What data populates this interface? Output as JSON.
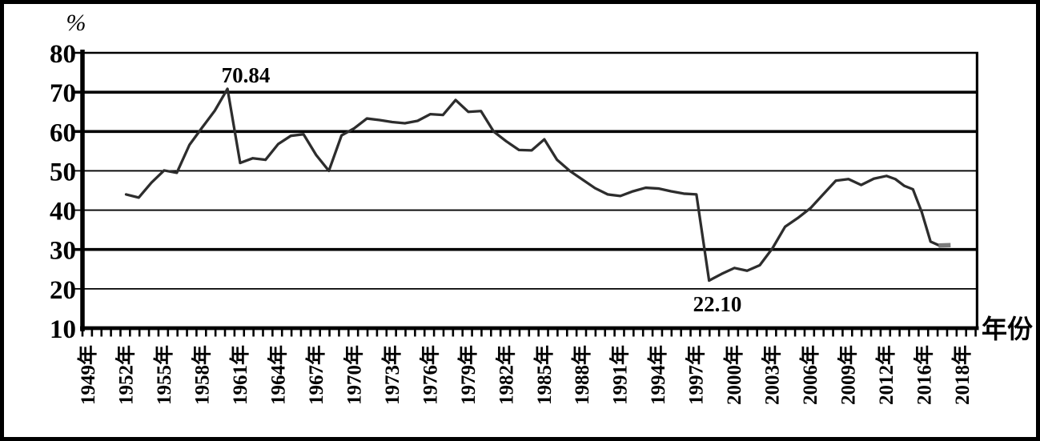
{
  "figure": {
    "background": "#ffffff",
    "frame_color": "#000000"
  },
  "chart_data": {
    "type": "line",
    "title": "",
    "ylabel": "%",
    "xlabel": "年份",
    "ylim": [
      10,
      80
    ],
    "yticks": [
      80,
      70,
      60,
      50,
      40,
      30,
      20,
      10
    ],
    "bold_gridlines": [
      70,
      60,
      30
    ],
    "grid": true,
    "legend_position": "none",
    "xtick_labels": [
      "1949年",
      "1952年",
      "1955年",
      "1958年",
      "1961年",
      "1964年",
      "1967年",
      "1970年",
      "1973年",
      "1976年",
      "1979年",
      "1982年",
      "1985年",
      "1988年",
      "1991年",
      "1994年",
      "1997年",
      "2000年",
      "2003年",
      "2006年",
      "2009年",
      "2012年",
      "2016年",
      "2018年"
    ],
    "series": [
      {
        "name": "",
        "color": "#2d2d2d",
        "end_marker_color": "#7c7c7c",
        "years": [
          1952,
          1953,
          1954,
          1955,
          1956,
          1957,
          1958,
          1959,
          1960,
          1961,
          1962,
          1963,
          1964,
          1965,
          1966,
          1967,
          1968,
          1969,
          1970,
          1971,
          1972,
          1973,
          1974,
          1975,
          1976,
          1977,
          1978,
          1979,
          1980,
          1981,
          1982,
          1983,
          1984,
          1985,
          1986,
          1987,
          1988,
          1989,
          1990,
          1991,
          1992,
          1993,
          1994,
          1995,
          1996,
          1997,
          1998,
          1999,
          2000,
          2001,
          2002,
          2003,
          2004,
          2005,
          2006,
          2007,
          2008,
          2009,
          2010,
          2011,
          2012,
          2013,
          2014,
          2015,
          2016,
          2017,
          2018,
          2019
        ],
        "values": [
          44.0,
          43.2,
          47.0,
          50.1,
          49.5,
          56.6,
          61.0,
          65.3,
          70.84,
          52.0,
          53.2,
          52.8,
          56.8,
          58.9,
          59.3,
          54.0,
          50.0,
          59.0,
          60.8,
          63.3,
          62.9,
          62.4,
          62.1,
          62.7,
          64.4,
          64.2,
          68.0,
          65.0,
          65.2,
          60.0,
          57.5,
          55.3,
          55.2,
          58.0,
          52.8,
          50.0,
          47.8,
          45.6,
          44.0,
          43.6,
          44.8,
          45.7,
          45.5,
          44.8,
          44.2,
          44.0,
          22.1,
          23.8,
          25.3,
          24.6,
          26.0,
          30.3,
          35.8,
          38.0,
          40.5,
          44.0,
          47.5,
          47.9,
          46.4,
          48.0,
          48.7,
          47.9,
          46.2,
          45.3,
          39.5,
          32.0,
          31.0,
          31.1
        ]
      }
    ],
    "annotations": [
      {
        "text": "70.84",
        "year": 1960,
        "value": 70.84,
        "placement": "above-peak"
      },
      {
        "text": "22.10",
        "year": 1998,
        "value": 22.1,
        "placement": "below-trough"
      }
    ],
    "axis_color": "#000000"
  }
}
